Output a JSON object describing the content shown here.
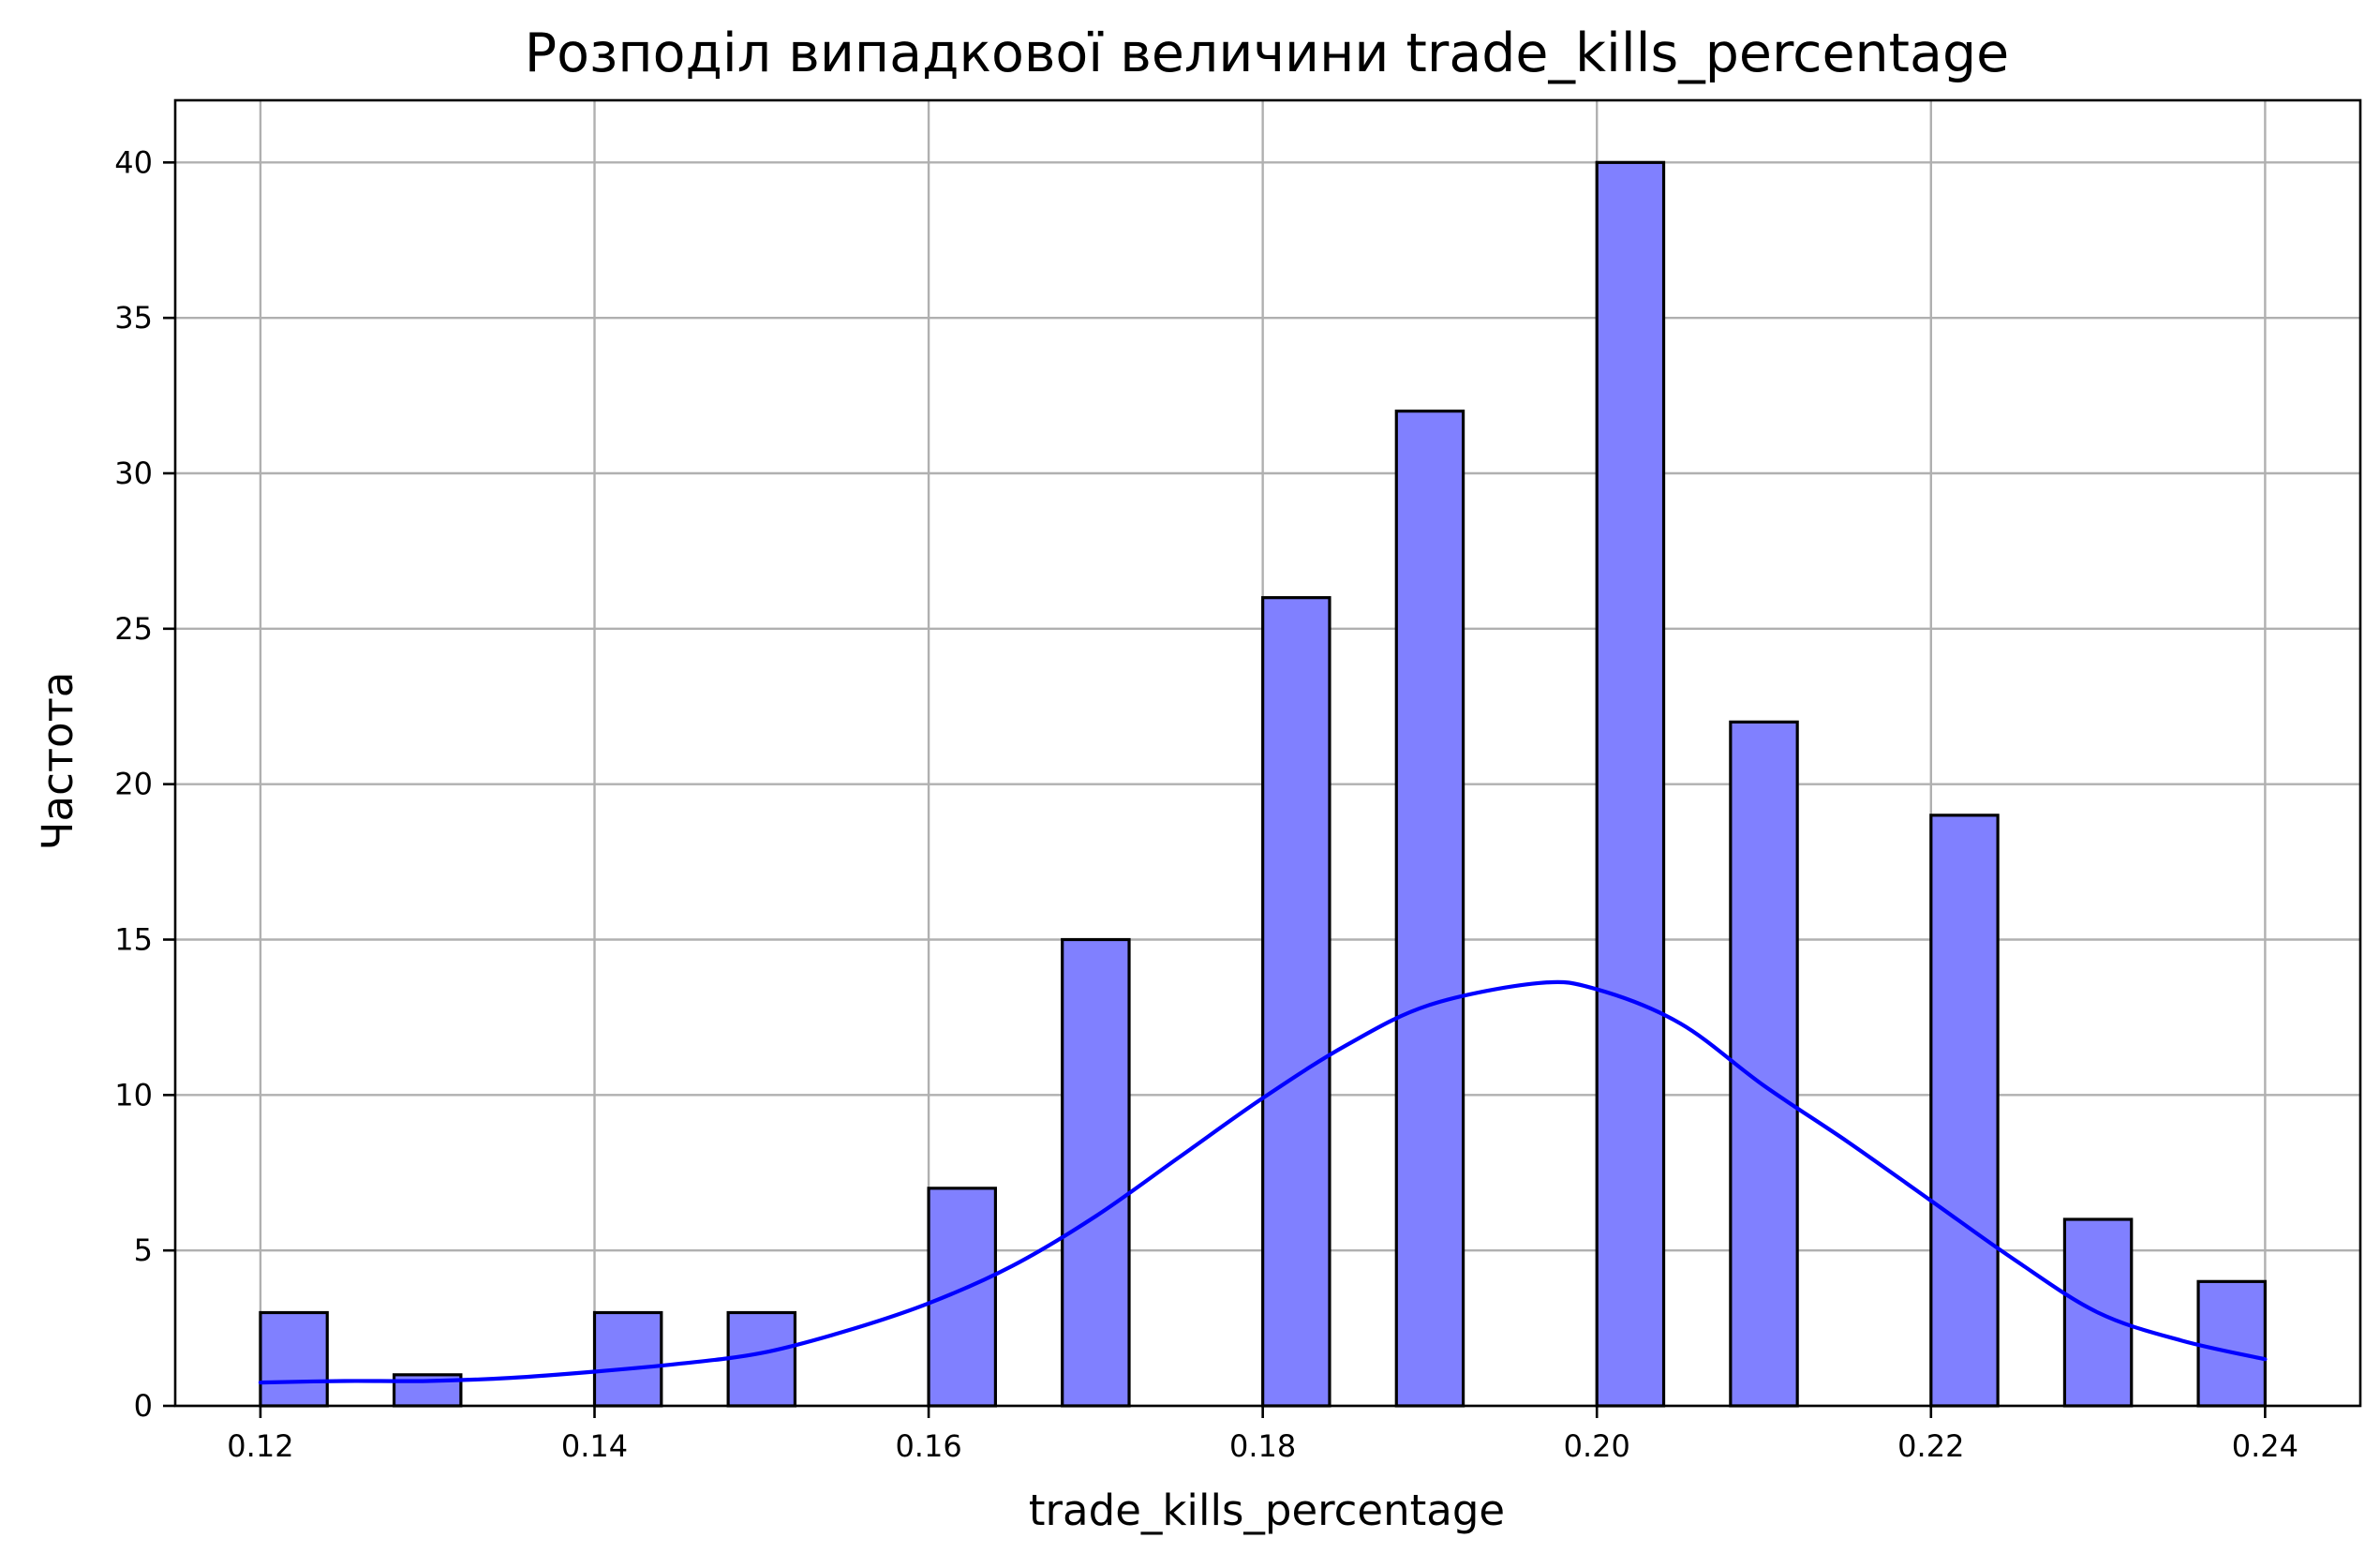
{
  "chart_data": {
    "type": "bar",
    "subtype": "histogram-with-kde",
    "title": "Розподіл випадкової величини trade_kills_percentage",
    "xlabel": "trade_kills_percentage",
    "ylabel": "Частота",
    "xlim": [
      0.1149,
      0.2457
    ],
    "ylim": [
      0,
      42
    ],
    "xticks": [
      0.12,
      0.14,
      0.16,
      0.18,
      0.2,
      0.22,
      0.24
    ],
    "xtick_labels": [
      "0.12",
      "0.14",
      "0.16",
      "0.18",
      "0.20",
      "0.22",
      "0.24"
    ],
    "yticks": [
      0,
      5,
      10,
      15,
      20,
      25,
      30,
      35,
      40
    ],
    "ytick_labels": [
      "0",
      "5",
      "10",
      "15",
      "20",
      "25",
      "30",
      "35",
      "40"
    ],
    "grid": true,
    "bin_width": 0.004,
    "bins": [
      {
        "x0": 0.12,
        "x1": 0.124,
        "count": 3
      },
      {
        "x0": 0.128,
        "x1": 0.132,
        "count": 1
      },
      {
        "x0": 0.14,
        "x1": 0.144,
        "count": 3
      },
      {
        "x0": 0.148,
        "x1": 0.152,
        "count": 3
      },
      {
        "x0": 0.16,
        "x1": 0.164,
        "count": 7
      },
      {
        "x0": 0.168,
        "x1": 0.172,
        "count": 15
      },
      {
        "x0": 0.18,
        "x1": 0.184,
        "count": 26
      },
      {
        "x0": 0.188,
        "x1": 0.192,
        "count": 32
      },
      {
        "x0": 0.2,
        "x1": 0.204,
        "count": 40
      },
      {
        "x0": 0.208,
        "x1": 0.212,
        "count": 22
      },
      {
        "x0": 0.22,
        "x1": 0.224,
        "count": 19
      },
      {
        "x0": 0.228,
        "x1": 0.232,
        "count": 6
      },
      {
        "x0": 0.236,
        "x1": 0.24,
        "count": 4
      }
    ],
    "kde": {
      "x": [
        0.12,
        0.125,
        0.13,
        0.135,
        0.14,
        0.145,
        0.15,
        0.155,
        0.16,
        0.165,
        0.17,
        0.175,
        0.18,
        0.185,
        0.19,
        0.1965,
        0.2,
        0.205,
        0.21,
        0.215,
        0.22,
        0.225,
        0.23,
        0.235,
        0.24
      ],
      "y": [
        0.75,
        0.8,
        0.8,
        0.9,
        1.1,
        1.35,
        1.7,
        2.4,
        3.3,
        4.5,
        6.1,
        8.0,
        9.9,
        11.6,
        12.9,
        13.6,
        13.4,
        12.3,
        10.3,
        8.5,
        6.6,
        4.7,
        3.0,
        2.1,
        1.5
      ]
    },
    "colors": {
      "bar_fill": "#8080ff",
      "bar_edge": "#000000",
      "kde_line": "#0000ff",
      "grid": "#b0b0b0"
    }
  }
}
